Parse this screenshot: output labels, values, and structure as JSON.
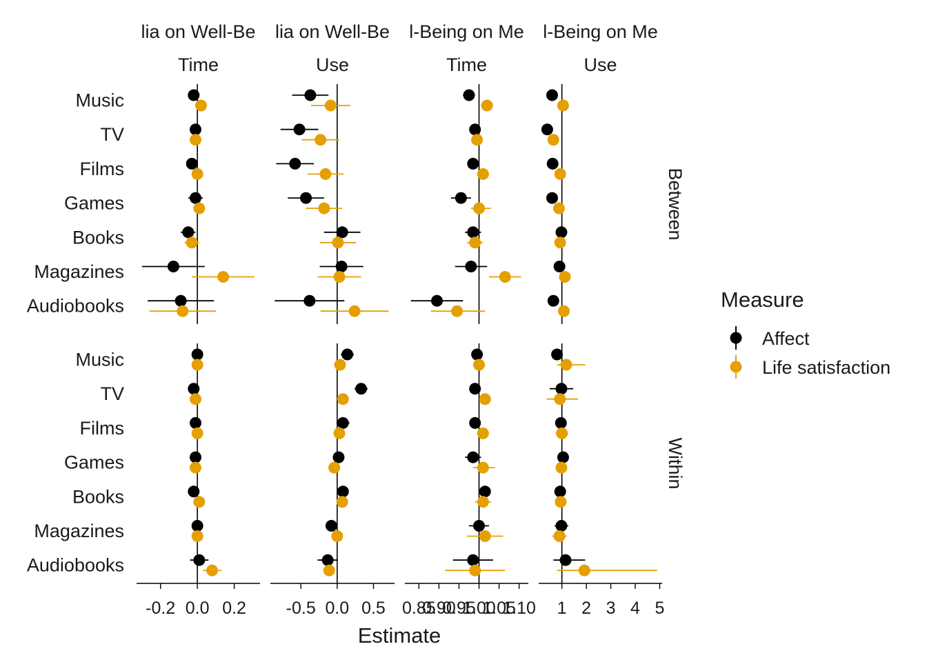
{
  "chart_data": {
    "type": "scatter",
    "subtype": "dot-and-whisker",
    "xlabel": "Estimate",
    "legend": {
      "title": "Measure",
      "position": "right",
      "entries": [
        {
          "name": "Affect",
          "color": "#000000"
        },
        {
          "name": "Life satisfaction",
          "color": "#E69F00"
        }
      ]
    },
    "categories": [
      "Music",
      "TV",
      "Films",
      "Games",
      "Books",
      "Magazines",
      "Audiobooks"
    ],
    "row_facets": [
      "Between",
      "Within"
    ],
    "columns": [
      {
        "title": "lia on Well-Be",
        "subtitle": "Time",
        "ref": 0,
        "xlim": [
          -0.33,
          0.34
        ],
        "ticks": [
          -0.2,
          0.0,
          0.2
        ],
        "tick_labels": [
          "-0.2",
          "0.0",
          "0.2"
        ],
        "panels": {
          "Between": {
            "Affect": [
              [
                -0.02,
                -0.04,
                0.01
              ],
              [
                -0.01,
                -0.02,
                0.0
              ],
              [
                -0.03,
                -0.05,
                -0.01
              ],
              [
                -0.01,
                -0.05,
                0.03
              ],
              [
                -0.05,
                -0.09,
                -0.01
              ],
              [
                -0.13,
                -0.3,
                0.04
              ],
              [
                -0.09,
                -0.27,
                0.09
              ]
            ],
            "Life satisfaction": [
              [
                0.02,
                -0.01,
                0.05
              ],
              [
                -0.01,
                -0.02,
                0.0
              ],
              [
                0.0,
                -0.03,
                0.03
              ],
              [
                0.01,
                -0.02,
                0.04
              ],
              [
                -0.03,
                -0.07,
                0.01
              ],
              [
                0.14,
                -0.03,
                0.31
              ],
              [
                -0.08,
                -0.26,
                0.1
              ]
            ]
          },
          "Within": {
            "Affect": [
              [
                0.0,
                -0.01,
                0.01
              ],
              [
                -0.02,
                -0.02,
                -0.01
              ],
              [
                -0.01,
                -0.01,
                0.0
              ],
              [
                -0.01,
                -0.02,
                0.0
              ],
              [
                -0.02,
                -0.02,
                -0.01
              ],
              [
                0.0,
                -0.02,
                0.02
              ],
              [
                0.01,
                -0.04,
                0.06
              ]
            ],
            "Life satisfaction": [
              [
                0.0,
                -0.01,
                0.01
              ],
              [
                -0.01,
                -0.02,
                0.0
              ],
              [
                0.0,
                -0.01,
                0.01
              ],
              [
                -0.01,
                -0.02,
                0.0
              ],
              [
                0.01,
                0.0,
                0.02
              ],
              [
                0.0,
                -0.01,
                0.01
              ],
              [
                0.08,
                0.03,
                0.13
              ]
            ]
          }
        }
      },
      {
        "title": "lia on Well-Be",
        "subtitle": "Use",
        "ref": 0,
        "xlim": [
          -0.92,
          0.79
        ],
        "ticks": [
          -0.5,
          0.0,
          0.5
        ],
        "tick_labels": [
          "-0.5",
          "0.0",
          "0.5"
        ],
        "panels": {
          "Between": {
            "Affect": [
              [
                -0.37,
                -0.62,
                -0.12
              ],
              [
                -0.52,
                -0.78,
                -0.26
              ],
              [
                -0.58,
                -0.84,
                -0.32
              ],
              [
                -0.43,
                -0.68,
                -0.18
              ],
              [
                0.07,
                -0.18,
                0.32
              ],
              [
                0.06,
                -0.24,
                0.36
              ],
              [
                -0.38,
                -0.86,
                0.1
              ]
            ],
            "Life satisfaction": [
              [
                -0.09,
                -0.36,
                0.18
              ],
              [
                -0.23,
                -0.49,
                0.03
              ],
              [
                -0.16,
                -0.41,
                0.09
              ],
              [
                -0.18,
                -0.43,
                0.07
              ],
              [
                0.01,
                -0.24,
                0.26
              ],
              [
                0.03,
                -0.27,
                0.33
              ],
              [
                0.24,
                -0.23,
                0.71
              ]
            ]
          },
          "Within": {
            "Affect": [
              [
                0.14,
                0.05,
                0.23
              ],
              [
                0.33,
                0.24,
                0.42
              ],
              [
                0.08,
                -0.01,
                0.17
              ],
              [
                0.02,
                -0.05,
                0.09
              ],
              [
                0.08,
                0.02,
                0.14
              ],
              [
                -0.08,
                -0.16,
                0.0
              ],
              [
                -0.13,
                -0.27,
                0.01
              ]
            ],
            "Life satisfaction": [
              [
                0.04,
                -0.04,
                0.12
              ],
              [
                0.08,
                0.0,
                0.16
              ],
              [
                0.03,
                -0.04,
                0.1
              ],
              [
                -0.04,
                -0.1,
                0.02
              ],
              [
                0.07,
                0.0,
                0.14
              ],
              [
                0.0,
                -0.06,
                0.06
              ],
              [
                -0.11,
                -0.19,
                -0.03
              ]
            ]
          }
        }
      },
      {
        "title": "l-Being on Me",
        "subtitle": "Time",
        "ref": 1.0,
        "xlim": [
          0.815,
          1.123
        ],
        "ticks": [
          0.85,
          0.9,
          0.95,
          1.0,
          1.05,
          1.1
        ],
        "tick_labels": [
          "0.85",
          "0.90",
          "0.95",
          "1.00",
          "1.05",
          "1.10"
        ],
        "panels": {
          "Between": {
            "Affect": [
              [
                0.975,
                0.96,
                0.99
              ],
              [
                0.99,
                0.98,
                1.0
              ],
              [
                0.985,
                0.975,
                0.995
              ],
              [
                0.955,
                0.93,
                0.98
              ],
              [
                0.985,
                0.965,
                1.005
              ],
              [
                0.98,
                0.94,
                1.02
              ],
              [
                0.895,
                0.83,
                0.96
              ]
            ],
            "Life satisfaction": [
              [
                1.02,
                1.005,
                1.035
              ],
              [
                0.995,
                0.985,
                1.005
              ],
              [
                1.01,
                0.995,
                1.025
              ],
              [
                1.0,
                0.98,
                1.03
              ],
              [
                0.99,
                0.97,
                1.01
              ],
              [
                1.065,
                1.025,
                1.105
              ],
              [
                0.945,
                0.88,
                1.015
              ]
            ]
          },
          "Within": {
            "Affect": [
              [
                0.995,
                0.985,
                1.005
              ],
              [
                0.99,
                0.98,
                1.0
              ],
              [
                0.99,
                0.98,
                1.0
              ],
              [
                0.985,
                0.965,
                1.005
              ],
              [
                1.015,
                1.005,
                1.025
              ],
              [
                1.0,
                0.975,
                1.025
              ],
              [
                0.985,
                0.935,
                1.035
              ]
            ],
            "Life satisfaction": [
              [
                1.0,
                0.985,
                1.015
              ],
              [
                1.015,
                1.005,
                1.025
              ],
              [
                1.01,
                0.995,
                1.025
              ],
              [
                1.01,
                0.985,
                1.04
              ],
              [
                1.01,
                0.99,
                1.03
              ],
              [
                1.015,
                0.97,
                1.06
              ],
              [
                0.99,
                0.915,
                1.065
              ]
            ]
          }
        }
      },
      {
        "title": "l-Being on Me",
        "subtitle": "Use",
        "ref": 1.0,
        "xlim": [
          0.05,
          5.1
        ],
        "ticks": [
          1,
          2,
          3,
          4,
          5
        ],
        "tick_labels": [
          "1",
          "2",
          "3",
          "4",
          "5"
        ],
        "panels": {
          "Between": {
            "Affect": [
              [
                0.6,
                0.55,
                0.65
              ],
              [
                0.4,
                0.35,
                0.45
              ],
              [
                0.62,
                0.57,
                0.67
              ],
              [
                0.6,
                0.55,
                0.65
              ],
              [
                0.98,
                0.93,
                1.03
              ],
              [
                0.9,
                0.85,
                0.95
              ],
              [
                0.65,
                0.6,
                0.7
              ]
            ],
            "Life satisfaction": [
              [
                1.05,
                0.95,
                1.15
              ],
              [
                0.65,
                0.6,
                0.7
              ],
              [
                0.93,
                0.88,
                0.98
              ],
              [
                0.88,
                0.83,
                0.93
              ],
              [
                0.93,
                0.88,
                0.98
              ],
              [
                1.12,
                1.05,
                1.19
              ],
              [
                1.08,
                1.0,
                1.16
              ]
            ]
          },
          "Within": {
            "Affect": [
              [
                0.8,
                0.6,
                1.0
              ],
              [
                0.98,
                0.5,
                1.46
              ],
              [
                0.96,
                0.86,
                1.06
              ],
              [
                1.05,
                0.95,
                1.15
              ],
              [
                0.93,
                0.85,
                1.01
              ],
              [
                0.98,
                0.7,
                1.26
              ],
              [
                1.15,
                0.65,
                1.95
              ]
            ],
            "Life satisfaction": [
              [
                1.18,
                0.8,
                1.96
              ],
              [
                0.92,
                0.38,
                1.66
              ],
              [
                1.0,
                0.75,
                1.25
              ],
              [
                0.98,
                0.78,
                1.18
              ],
              [
                0.95,
                0.83,
                1.07
              ],
              [
                0.9,
                0.6,
                1.2
              ],
              [
                1.92,
                0.8,
                4.9
              ]
            ]
          }
        }
      }
    ]
  }
}
